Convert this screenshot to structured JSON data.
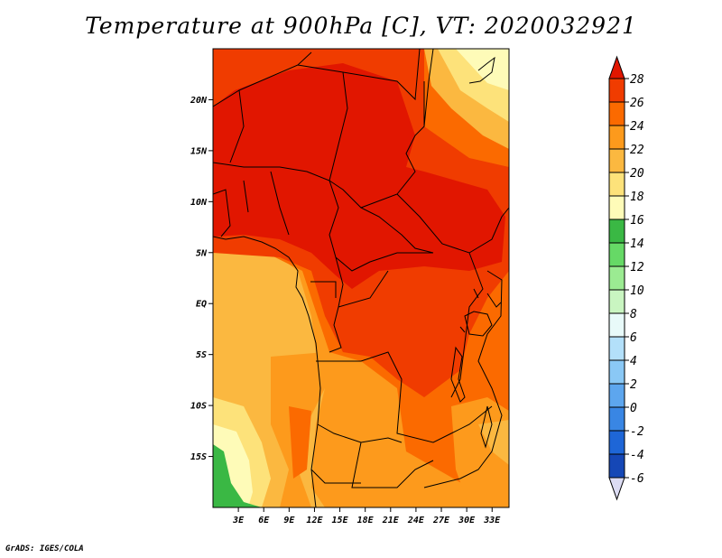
{
  "title": "Temperature at 900hPa [C], VT: 2020032921",
  "credit": "GrADS: IGES/COLA",
  "map": {
    "lon_range": [
      0,
      35
    ],
    "lat_range": [
      -20,
      25
    ],
    "lat_ticks": [
      {
        "value": 20,
        "label": "20N"
      },
      {
        "value": 15,
        "label": "15N"
      },
      {
        "value": 10,
        "label": "10N"
      },
      {
        "value": 5,
        "label": "5N"
      },
      {
        "value": 0,
        "label": "EQ"
      },
      {
        "value": -5,
        "label": "5S"
      },
      {
        "value": -10,
        "label": "10S"
      },
      {
        "value": -15,
        "label": "15S"
      }
    ],
    "lon_ticks": [
      {
        "value": 3,
        "label": "3E"
      },
      {
        "value": 6,
        "label": "6E"
      },
      {
        "value": 9,
        "label": "9E"
      },
      {
        "value": 12,
        "label": "12E"
      },
      {
        "value": 15,
        "label": "15E"
      },
      {
        "value": 18,
        "label": "18E"
      },
      {
        "value": 21,
        "label": "21E"
      },
      {
        "value": 24,
        "label": "24E"
      },
      {
        "value": 27,
        "label": "27E"
      },
      {
        "value": 30,
        "label": "30E"
      },
      {
        "value": 33,
        "label": "33E"
      }
    ]
  },
  "colorbar": {
    "labels": [
      "28",
      "26",
      "24",
      "22",
      "20",
      "18",
      "16",
      "14",
      "12",
      "10",
      "8",
      "6",
      "4",
      "2",
      "0",
      "-2",
      "-4",
      "-6"
    ],
    "colors": [
      "#e11600",
      "#f03c00",
      "#fb6a00",
      "#fd9a1c",
      "#fbb840",
      "#fde27a",
      "#fefbb8",
      "#3ab844",
      "#66d966",
      "#9beb92",
      "#c9f5c1",
      "#e8faf9",
      "#b3e0fa",
      "#8ac8f5",
      "#5da6ee",
      "#3986e4",
      "#1e66d7",
      "#1547b6",
      "#0b2b90",
      "#041c6a"
    ],
    "over_color": "#e11600",
    "under_color": "#dcdcf3"
  }
}
